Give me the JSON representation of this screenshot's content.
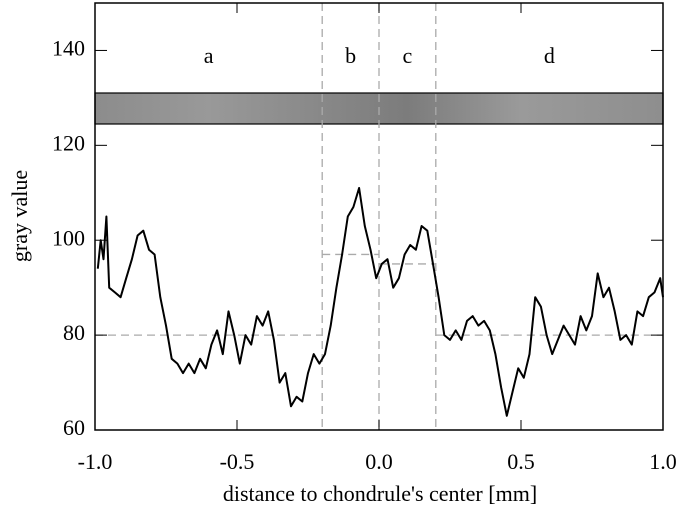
{
  "chart_data": {
    "type": "line",
    "x_label": "distance to chondrule's center [mm]",
    "y_label": "gray value",
    "xlim": [
      -1.0,
      1.0
    ],
    "ylim": [
      60,
      150
    ],
    "xticks": [
      {
        "value": -1.0,
        "label": "-1.0"
      },
      {
        "value": -0.5,
        "label": "-0.5"
      },
      {
        "value": 0,
        "label": "0.0"
      },
      {
        "value": 0.5,
        "label": "0.5"
      },
      {
        "value": 1.0,
        "label": "1.0"
      }
    ],
    "yticks": [
      60,
      80,
      100,
      120,
      140
    ],
    "color": "#000000",
    "regions": [
      {
        "label": "a",
        "from": -1.0,
        "to": -0.2,
        "mean": 80
      },
      {
        "label": "b",
        "from": -0.2,
        "to": 0,
        "mean": 97
      },
      {
        "label": "c",
        "from": 0,
        "to": 0.2,
        "mean": 95
      },
      {
        "label": "d",
        "from": 0.2,
        "to": 1.0,
        "mean": 80
      }
    ],
    "x": [
      -0.99,
      -0.98,
      -0.97,
      -0.96,
      -0.95,
      -0.93,
      -0.91,
      -0.89,
      -0.87,
      -0.85,
      -0.83,
      -0.81,
      -0.79,
      -0.77,
      -0.75,
      -0.73,
      -0.71,
      -0.69,
      -0.67,
      -0.65,
      -0.63,
      -0.61,
      -0.59,
      -0.57,
      -0.55,
      -0.53,
      -0.51,
      -0.49,
      -0.47,
      -0.45,
      -0.43,
      -0.41,
      -0.39,
      -0.37,
      -0.35,
      -0.33,
      -0.31,
      -0.29,
      -0.27,
      -0.25,
      -0.23,
      -0.21,
      -0.19,
      -0.17,
      -0.15,
      -0.13,
      -0.11,
      -0.09,
      -0.07,
      -0.05,
      -0.03,
      -0.01,
      0.01,
      0.03,
      0.05,
      0.07,
      0.09,
      0.11,
      0.13,
      0.15,
      0.17,
      0.19,
      0.21,
      0.23,
      0.25,
      0.27,
      0.29,
      0.31,
      0.33,
      0.35,
      0.37,
      0.39,
      0.41,
      0.43,
      0.45,
      0.47,
      0.49,
      0.51,
      0.53,
      0.55,
      0.57,
      0.59,
      0.61,
      0.63,
      0.65,
      0.67,
      0.69,
      0.71,
      0.73,
      0.75,
      0.77,
      0.79,
      0.81,
      0.83,
      0.85,
      0.87,
      0.89,
      0.91,
      0.93,
      0.95,
      0.97,
      0.99,
      1.0
    ],
    "values": [
      94,
      100,
      96,
      105,
      90,
      89,
      88,
      92,
      96,
      101,
      102,
      98,
      97,
      88,
      82,
      75,
      74,
      72,
      74,
      72,
      75,
      73,
      78,
      81,
      76,
      85,
      80,
      74,
      80,
      78,
      84,
      82,
      85,
      79,
      70,
      72,
      65,
      67,
      66,
      72,
      76,
      74,
      76,
      82,
      90,
      97,
      105,
      107,
      111,
      103,
      98,
      92,
      95,
      96,
      90,
      92,
      97,
      99,
      98,
      103,
      102,
      95,
      88,
      80,
      79,
      81,
      79,
      83,
      84,
      82,
      83,
      81,
      76,
      69,
      63,
      68,
      73,
      71,
      76,
      88,
      86,
      80,
      76,
      79,
      82,
      80,
      78,
      84,
      81,
      84,
      93,
      88,
      90,
      85,
      79,
      80,
      78,
      85,
      84,
      88,
      89,
      92,
      88
    ]
  }
}
